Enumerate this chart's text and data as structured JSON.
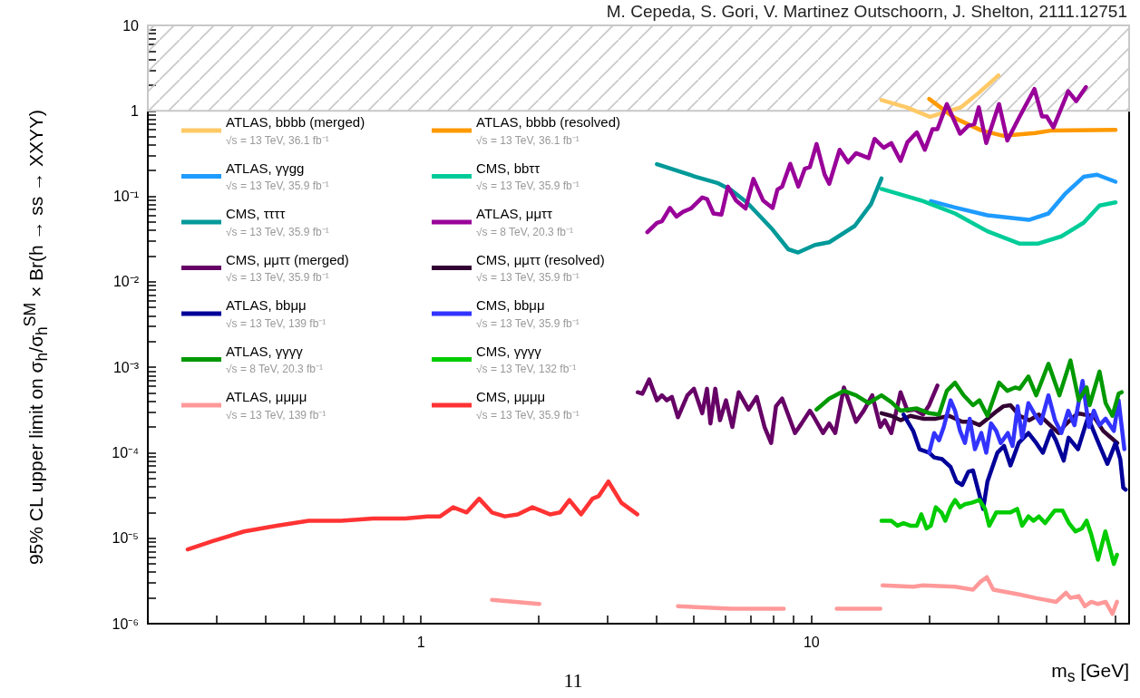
{
  "chart_data": {
    "type": "line",
    "xlabel": "m$_{s}$ [GeV]",
    "ylabel": "95% CL upper limit on σ$_{h}$/σ$_{h}$$^{SM}$ × Br(h → ss → XXYY)",
    "annotations": [
      "M. Cepeda, S. Gori, V. Martinez Outschoorn, J. Shelton, 2111.12751",
      "11"
    ],
    "log": "xy",
    "legend": "top left",
    "xlim": [
      0.2,
      65
    ],
    "ylim": [
      1e-06,
      10
    ],
    "xticks": [
      {
        "value": 0.3,
        "label": null
      },
      {
        "value": 0.4,
        "label": null
      },
      {
        "value": 0.5,
        "label": null
      },
      {
        "value": 0.6,
        "label": null
      },
      {
        "value": 0.7,
        "label": null
      },
      {
        "value": 0.8,
        "label": null
      },
      {
        "value": 0.9,
        "label": null
      },
      1,
      {
        "value": 2,
        "label": null
      },
      {
        "value": 3,
        "label": null
      },
      {
        "value": 4,
        "label": null
      },
      {
        "value": 5,
        "label": null
      },
      {
        "value": 6,
        "label": null
      },
      {
        "value": 7,
        "label": null
      },
      {
        "value": 8,
        "label": null
      },
      {
        "value": 9,
        "label": null
      },
      10,
      {
        "value": 20,
        "label": null
      },
      {
        "value": 30,
        "label": null
      },
      {
        "value": 40,
        "label": null
      },
      {
        "value": 50,
        "label": null
      },
      {
        "value": 60,
        "label": null
      }
    ],
    "yticks": [
      {
        "value": 1e-06,
        "label": "10⁻⁶"
      },
      {
        "value": 2e-06,
        "label": null
      },
      {
        "value": 3e-06,
        "label": null
      },
      {
        "value": 4e-06,
        "label": null
      },
      {
        "value": 5e-06,
        "label": null
      },
      {
        "value": 6e-06,
        "label": null
      },
      {
        "value": 7e-06,
        "label": null
      },
      {
        "value": 8e-06,
        "label": null
      },
      {
        "value": 9e-06,
        "label": null
      },
      {
        "value": 1e-05,
        "label": "10⁻⁵"
      },
      {
        "value": 2e-05,
        "label": null
      },
      {
        "value": 3e-05,
        "label": null
      },
      {
        "value": 4e-05,
        "label": null
      },
      {
        "value": 5e-05,
        "label": null
      },
      {
        "value": 6e-05,
        "label": null
      },
      {
        "value": 7e-05,
        "label": null
      },
      {
        "value": 8e-05,
        "label": null
      },
      {
        "value": 9e-05,
        "label": null
      },
      {
        "value": 0.0001,
        "label": "10⁻⁴"
      },
      {
        "value": 0.0002,
        "label": null
      },
      {
        "value": 0.0003,
        "label": null
      },
      {
        "value": 0.0004,
        "label": null
      },
      {
        "value": 0.0005,
        "label": null
      },
      {
        "value": 0.0006,
        "label": null
      },
      {
        "value": 0.0007,
        "label": null
      },
      {
        "value": 0.0008,
        "label": null
      },
      {
        "value": 0.0009,
        "label": null
      },
      {
        "value": 0.001,
        "label": "10⁻³"
      },
      {
        "value": 0.002,
        "label": null
      },
      {
        "value": 0.003,
        "label": null
      },
      {
        "value": 0.004,
        "label": null
      },
      {
        "value": 0.005,
        "label": null
      },
      {
        "value": 0.006,
        "label": null
      },
      {
        "value": 0.007,
        "label": null
      },
      {
        "value": 0.008,
        "label": null
      },
      {
        "value": 0.009,
        "label": null
      },
      {
        "value": 0.01,
        "label": "10⁻²"
      },
      {
        "value": 0.02,
        "label": null
      },
      {
        "value": 0.03,
        "label": null
      },
      {
        "value": 0.04,
        "label": null
      },
      {
        "value": 0.05,
        "label": null
      },
      {
        "value": 0.06,
        "label": null
      },
      {
        "value": 0.07,
        "label": null
      },
      {
        "value": 0.08,
        "label": null
      },
      {
        "value": 0.09,
        "label": null
      },
      {
        "value": 0.1,
        "label": "10⁻¹"
      },
      {
        "value": 0.2,
        "label": null
      },
      {
        "value": 0.3,
        "label": null
      },
      {
        "value": 0.4,
        "label": null
      },
      {
        "value": 0.5,
        "label": null
      },
      {
        "value": 0.6,
        "label": null
      },
      {
        "value": 0.7,
        "label": null
      },
      {
        "value": 0.8,
        "label": null
      },
      {
        "value": 0.9,
        "label": null
      },
      1,
      {
        "value": 2,
        "label": null
      },
      {
        "value": 3,
        "label": null
      },
      {
        "value": 4,
        "label": null
      },
      {
        "value": 5,
        "label": null
      },
      {
        "value": 6,
        "label": null
      },
      {
        "value": 7,
        "label": null
      },
      {
        "value": 8,
        "label": null
      },
      {
        "value": 9,
        "label": null
      },
      10
    ],
    "bands": [
      {
        "axis": "y",
        "from": 1,
        "to": 10,
        "color": "#c8c8c8"
      }
    ],
    "series": [
      {
        "name": "ATLAS, bbbb (merged)\n√s = 13 TeV, 36.1 fb⁻¹",
        "color": "#ffc966",
        "x": [
          15.1,
          17.5,
          20.1,
          24.1,
          26.7,
          30.1
        ],
        "values": [
          1.34,
          1.1,
          0.85,
          1.1,
          1.6,
          2.6
        ]
      },
      {
        "name": "ATLAS, bbbb (resolved)\n√s = 13 TeV, 36.1 fb⁻¹",
        "color": "#ff9900",
        "x": [
          20.0,
          23.3,
          27.2,
          31.0,
          37.4,
          41.2,
          60.0
        ],
        "values": [
          1.38,
          0.82,
          0.59,
          0.51,
          0.55,
          0.59,
          0.6
        ]
      },
      {
        "name": "ATLAS, γγgg\n√s = 13 TeV, 35.9 fb⁻¹",
        "color": "#1e9bff",
        "x": [
          20.2,
          23.3,
          28.2,
          36.0,
          40.4,
          44.5,
          49.7,
          53.8,
          60.0
        ],
        "values": [
          0.088,
          0.074,
          0.06,
          0.053,
          0.063,
          0.106,
          0.169,
          0.179,
          0.148
        ]
      },
      {
        "name": "CMS, bbττ\n√s = 13 TeV, 35.9 fb⁻¹",
        "color": "#00cc99",
        "x": [
          15.1,
          19.3,
          23.3,
          28.2,
          34.0,
          38.1,
          43.6,
          49.7,
          54.6,
          60.0
        ],
        "values": [
          0.122,
          0.088,
          0.063,
          0.039,
          0.028,
          0.028,
          0.034,
          0.049,
          0.078,
          0.085
        ]
      },
      {
        "name": "CMS, ττττ\n√s = 13 TeV, 35.9 fb⁻¹",
        "color": "#009999",
        "x": [
          4.02,
          5.06,
          5.77,
          6.22,
          6.83,
          7.94,
          8.72,
          9.24,
          10.2,
          11.1,
          12.9,
          14.2,
          15.1
        ],
        "values": [
          0.238,
          0.169,
          0.142,
          0.119,
          0.085,
          0.041,
          0.024,
          0.022,
          0.027,
          0.029,
          0.045,
          0.081,
          0.162
        ]
      },
      {
        "name": "ATLAS, μμττ\n√s = 8 TeV, 20.3 fb⁻¹",
        "color": "#990099",
        "x": [
          3.8,
          4.02,
          4.14,
          4.34,
          4.51,
          4.69,
          4.91,
          5.25,
          5.4,
          5.61,
          5.88,
          6.11,
          6.41,
          6.78,
          7.1,
          7.52,
          7.95,
          8.18,
          8.41,
          8.82,
          9.25,
          9.61,
          9.9,
          10.3,
          10.8,
          11.1,
          11.8,
          12.4,
          13.0,
          14.0,
          14.5,
          15.3,
          16.0,
          16.9,
          17.6,
          18.6,
          19.5,
          20.4,
          21.0,
          22.2,
          24.0,
          25.2,
          26.1,
          26.8,
          28.0,
          30.2,
          31.7,
          34.1,
          37.2,
          38.9,
          40.0,
          41.6,
          45.4,
          47.6,
          50.4
        ],
        "values": [
          0.038,
          0.049,
          0.051,
          0.073,
          0.058,
          0.066,
          0.072,
          0.097,
          0.093,
          0.063,
          0.061,
          0.13,
          0.089,
          0.072,
          0.16,
          0.089,
          0.073,
          0.12,
          0.13,
          0.24,
          0.13,
          0.21,
          0.22,
          0.41,
          0.18,
          0.14,
          0.35,
          0.25,
          0.32,
          0.28,
          0.47,
          0.37,
          0.42,
          0.26,
          0.43,
          0.56,
          0.35,
          0.61,
          0.61,
          1.2,
          0.54,
          0.67,
          0.7,
          1.1,
          0.42,
          1.2,
          0.45,
          0.86,
          1.8,
          0.86,
          0.86,
          0.64,
          1.7,
          1.3,
          1.9
        ]
      },
      {
        "name": "CMS, μμττ (merged)\n√s = 13 TeV, 35.9 fb⁻¹",
        "color": "#660066",
        "x": [
          3.59,
          3.69,
          3.84,
          4.02,
          4.14,
          4.26,
          4.39,
          4.55,
          4.81,
          5.0,
          5.25,
          5.4,
          5.51,
          5.67,
          5.83,
          6.04,
          6.27,
          6.51,
          6.9,
          7.24,
          7.58,
          7.88,
          8.11,
          8.41,
          9.07,
          9.43,
          9.9,
          10.1,
          10.7,
          11.1,
          11.5,
          12.1,
          13.0,
          13.6,
          14.3,
          15.0,
          15.4,
          16.0,
          16.9,
          17.6,
          18.4,
          19.3,
          20.0,
          21.0
        ],
        "values": [
          0.00051,
          0.00049,
          0.00072,
          0.00041,
          0.00047,
          0.00041,
          0.00045,
          0.00026,
          0.00047,
          0.00056,
          0.00029,
          0.00056,
          0.00022,
          0.00056,
          0.00024,
          0.00041,
          0.0002,
          0.00051,
          0.00032,
          0.00045,
          0.0002,
          0.00013,
          0.00035,
          0.00043,
          0.00017,
          0.00022,
          0.00031,
          0.00027,
          0.00017,
          0.00022,
          0.00017,
          0.00058,
          0.00023,
          0.00031,
          0.00047,
          0.0002,
          0.00024,
          0.00017,
          0.00051,
          0.00031,
          0.00032,
          0.00028,
          0.00036,
          0.00061
        ]
      },
      {
        "name": "CMS, μμττ (resolved)\n√s = 13 TeV, 35.9 fb⁻¹",
        "color": "#330033",
        "x": [
          15.1,
          16.0,
          16.9,
          17.9,
          19.3,
          20.8,
          22.5,
          24.3,
          25.7,
          26.9,
          28.2,
          29.9,
          31.0,
          32.3,
          34.1,
          36.1,
          38.2,
          41.3,
          42.9,
          44.5,
          48.0,
          49.8,
          52.7,
          55.8,
          60.6
        ],
        "values": [
          0.00029,
          0.00027,
          0.00024,
          0.00027,
          0.00025,
          0.00025,
          0.00027,
          0.00023,
          0.00023,
          0.00021,
          0.00025,
          0.00031,
          0.00035,
          0.00036,
          0.00027,
          0.00024,
          0.00028,
          0.0002,
          0.00017,
          0.00021,
          0.00029,
          0.00028,
          0.00027,
          0.00018,
          0.00013
        ]
      },
      {
        "name": "ATLAS, bbμμ\n√s = 13 TeV, 139 fb⁻¹",
        "color": "#000099",
        "x": [
          17.2,
          18.2,
          18.9,
          20.0,
          20.6,
          21.6,
          22.7,
          23.5,
          24.3,
          25.2,
          25.9,
          26.6,
          27.5,
          28.2,
          29.9,
          31.1,
          32.3,
          33.9,
          35.9,
          37.6,
          39.1,
          41.0,
          42.2,
          44.2,
          45.5,
          48.1,
          51.0,
          53.9,
          57.2,
          60.0,
          61.7,
          62.8,
          63.7
        ],
        "values": [
          0.00028,
          0.00018,
          0.00011,
          0.0001,
          8.8e-05,
          8.4e-05,
          6.8e-05,
          4.6e-05,
          4.2e-05,
          6e-05,
          6.2e-05,
          3.9e-05,
          2.2e-05,
          4.6e-05,
          0.0001,
          0.00012,
          7.1e-05,
          0.00013,
          0.00017,
          0.00013,
          0.0001,
          0.00018,
          0.00014,
          8.1e-05,
          0.00015,
          0.00011,
          0.00026,
          0.00014,
          7.4e-05,
          0.00013,
          8.4e-05,
          3.9e-05,
          3.7e-05
        ]
      },
      {
        "name": "CMS, bbμμ\n√s = 13 TeV, 35.9 fb⁻¹",
        "color": "#3333ff",
        "x": [
          20.0,
          20.6,
          21.2,
          21.8,
          22.7,
          23.3,
          24.0,
          24.7,
          25.4,
          26.2,
          27.2,
          28.0,
          28.8,
          29.7,
          30.5,
          31.8,
          32.7,
          33.7,
          34.6,
          35.9,
          37.3,
          38.6,
          40.4,
          42.0,
          43.6,
          45.4,
          47.1,
          49.4,
          51.3,
          52.8,
          54.6,
          56.6,
          59.4,
          61.1,
          63.2
        ],
        "values": [
          0.0001,
          0.00017,
          0.00014,
          0.0002,
          0.00041,
          0.00031,
          0.00018,
          0.00013,
          0.00025,
          0.00011,
          0.00017,
          0.0001,
          0.00022,
          0.00018,
          0.00013,
          0.00017,
          0.00012,
          0.00035,
          0.00015,
          0.00038,
          0.00028,
          0.00022,
          0.00047,
          0.00024,
          0.00017,
          0.00031,
          0.00021,
          0.00069,
          0.0002,
          0.00031,
          0.00021,
          0.00025,
          0.00018,
          0.00041,
          0.00011
        ]
      },
      {
        "name": "ATLAS, γγγγ\n√s = 8 TeV, 20.3 fb⁻¹",
        "color": "#009900",
        "x": [
          10.3,
          11.1,
          12.1,
          13.0,
          14.0,
          15.1,
          16.0,
          16.9,
          18.6,
          20.0,
          21.2,
          22.2,
          23.3,
          24.5,
          25.9,
          26.9,
          28.2,
          30.2,
          31.7,
          33.2,
          34.1,
          35.9,
          37.6,
          40.4,
          43.1,
          46.0,
          48.3,
          50.6,
          51.5,
          54.6,
          56.6,
          58.9,
          61.1,
          62.2
        ],
        "values": [
          0.00032,
          0.00043,
          0.00053,
          0.00047,
          0.00038,
          0.00047,
          0.00039,
          0.00031,
          0.00033,
          0.00029,
          0.00028,
          0.00053,
          0.00066,
          0.00047,
          0.00036,
          0.00041,
          0.00027,
          0.00066,
          0.00053,
          0.00058,
          0.00056,
          0.00078,
          0.00047,
          0.0011,
          0.00047,
          0.0012,
          0.00041,
          0.00058,
          0.00036,
          0.00089,
          0.00038,
          0.00027,
          0.00049,
          0.00051
        ]
      },
      {
        "name": "CMS, γγγγ\n√s = 13 TeV, 132 fb⁻¹",
        "color": "#00cc00",
        "x": [
          15.1,
          16.0,
          16.6,
          17.2,
          17.9,
          18.6,
          19.1,
          19.7,
          20.2,
          20.8,
          21.5,
          22.0,
          22.7,
          23.3,
          24.0,
          24.7,
          25.7,
          26.9,
          27.8,
          28.5,
          29.7,
          31.1,
          32.3,
          33.6,
          34.6,
          35.9,
          37.0,
          38.2,
          39.6,
          41.9,
          43.9,
          45.6,
          47.4,
          49.2,
          50.6,
          52.0,
          54.1,
          56.5,
          58.3,
          59.4,
          60.5
        ],
        "values": [
          1.6e-05,
          1.6e-05,
          1.4e-05,
          1.5e-05,
          1.4e-05,
          1.4e-05,
          1.9e-05,
          1.3e-05,
          1.4e-05,
          2.3e-05,
          2e-05,
          1.6e-05,
          2.3e-05,
          2.8e-05,
          2.3e-05,
          2.5e-05,
          2.6e-05,
          2.8e-05,
          2.2e-05,
          1.4e-05,
          2e-05,
          2e-05,
          2e-05,
          2.2e-05,
          1.4e-05,
          1.8e-05,
          1.6e-05,
          1.8e-05,
          1.5e-05,
          2.1e-05,
          2.1e-05,
          1.5e-05,
          1.2e-05,
          1.3e-05,
          1.6e-05,
          1.1e-05,
          5.6e-06,
          1.2e-05,
          7e-06,
          5e-06,
          6.4e-06
        ]
      },
      {
        "name": "ATLAS, μμμμ\n√s = 13 TeV, 139 fb⁻¹",
        "color": "#ff9999",
        "x": [
          1.52,
          2.01,
          3,
          4.55,
          6.22,
          8.49,
          10,
          11.6,
          15.0,
          15.1,
          15.2,
          18.2,
          19.3,
          23.3,
          25.9,
          27.1,
          28.1,
          29.2,
          34.0,
          37.4,
          42.3,
          44.8,
          46.0,
          48.3,
          50.1,
          52.0,
          54.1,
          56.6,
          58.9,
          60.5
        ],
        "values": [
          1.9e-06,
          1.7e-06,
          null,
          1.6e-06,
          1.5e-06,
          1.5e-06,
          null,
          1.5e-06,
          1.5e-06,
          null,
          2.8e-06,
          2.7e-06,
          2.8e-06,
          2.7e-06,
          2.5e-06,
          3.1e-06,
          3.5e-06,
          2.5e-06,
          2.2e-06,
          2e-06,
          1.8e-06,
          2.3e-06,
          2e-06,
          2.1e-06,
          1.6e-06,
          1.8e-06,
          1.7e-06,
          1.8e-06,
          1.3e-06,
          1.8e-06
        ]
      },
      {
        "name": "CMS, μμμμ\n√s = 13 TeV, 35.9 fb⁻¹",
        "color": "#ff3333",
        "x": [
          0.253,
          0.292,
          0.353,
          0.427,
          0.516,
          0.624,
          0.755,
          0.912,
          1.04,
          1.12,
          1.21,
          1.31,
          1.41,
          1.52,
          1.64,
          1.77,
          1.93,
          2.14,
          2.27,
          2.4,
          2.57,
          2.75,
          2.85,
          3.02,
          3.26,
          3.58
        ],
        "values": [
          7.4e-06,
          9.2e-06,
          1.2e-05,
          1.4e-05,
          1.6e-05,
          1.6e-05,
          1.7e-05,
          1.7e-05,
          1.8e-05,
          1.8e-05,
          2.3e-05,
          2e-05,
          2.9e-05,
          2e-05,
          1.8e-05,
          1.9e-05,
          2.3e-05,
          1.9e-05,
          2e-05,
          2.8e-05,
          1.9e-05,
          2.9e-05,
          3.1e-05,
          4.6e-05,
          2.6e-05,
          1.9e-05
        ]
      }
    ]
  }
}
